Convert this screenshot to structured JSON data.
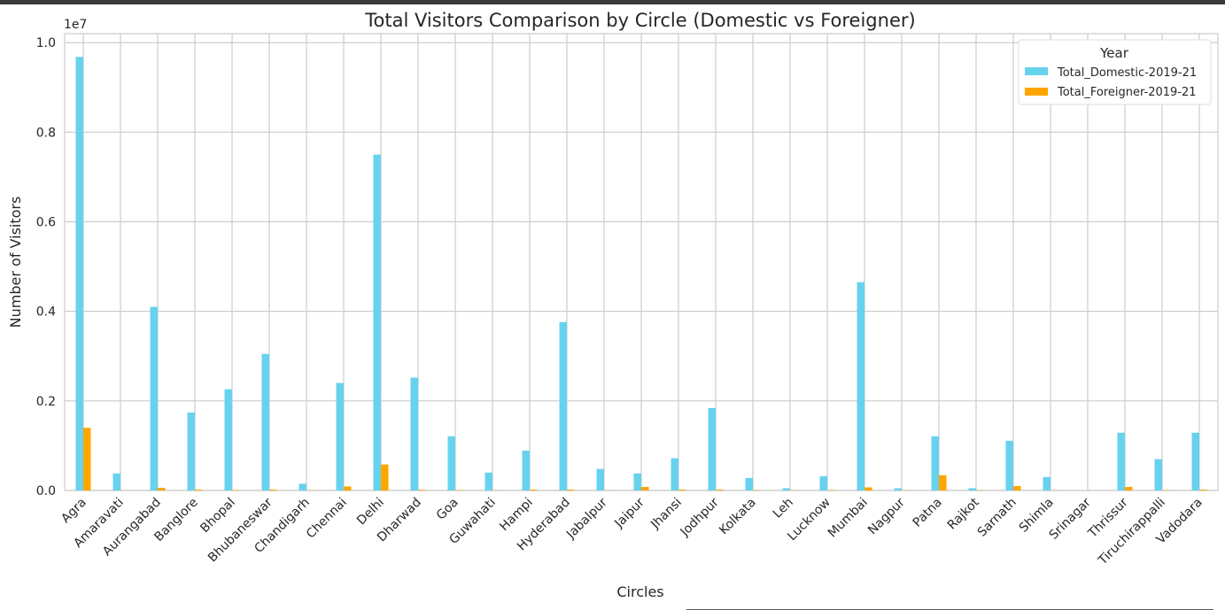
{
  "chart_data": {
    "type": "bar",
    "title": "Total Visitors Comparison by Circle (Domestic vs Foreigner)",
    "xlabel": "Circles",
    "ylabel": "Number of Visitors",
    "y_offset_label": "1e7",
    "ylim": [
      0,
      10200000
    ],
    "yticks": [
      0,
      2000000,
      4000000,
      6000000,
      8000000,
      10000000
    ],
    "ytick_labels": [
      "0.0",
      "0.2",
      "0.4",
      "0.6",
      "0.8",
      "1.0"
    ],
    "grid": true,
    "legend_title": "Year",
    "legend_position": "top-right",
    "categories": [
      "Agra",
      "Amaravati",
      "Aurangabad",
      "Banglore",
      "Bhopal",
      "Bhubaneswar",
      "Chandigarh",
      "Chennai",
      "Delhi",
      "Dharwad",
      "Goa",
      "Guwahati",
      "Hampi",
      "Hyderabad",
      "Jabalpur",
      "Jaipur",
      "Jhansi",
      "Jodhpur",
      "Kolkata",
      "Leh",
      "Lucknow",
      "Mumbai",
      "Nagpur",
      "Patna",
      "Rajkot",
      "Sarnath",
      "Shimla",
      "Srinagar",
      "Thrissur",
      "Tiruchirappalli",
      "Vadodara"
    ],
    "series": [
      {
        "name": "Total_Domestic-2019-21",
        "color": "#67d2ee",
        "values": [
          9680000,
          380000,
          4100000,
          1740000,
          2260000,
          3050000,
          150000,
          2400000,
          7500000,
          2520000,
          1210000,
          400000,
          890000,
          3760000,
          480000,
          380000,
          720000,
          1840000,
          280000,
          50000,
          320000,
          4650000,
          50000,
          1210000,
          50000,
          1110000,
          300000,
          0,
          1290000,
          700000,
          1290000
        ]
      },
      {
        "name": "Total_Foreigner-2019-21",
        "color": "#ffa500",
        "values": [
          1400000,
          5000,
          60000,
          20000,
          10000,
          20000,
          5000,
          90000,
          580000,
          15000,
          10000,
          5000,
          20000,
          20000,
          5000,
          80000,
          20000,
          20000,
          10000,
          5000,
          10000,
          70000,
          5000,
          340000,
          5000,
          100000,
          5000,
          0,
          80000,
          10000,
          20000
        ]
      }
    ]
  }
}
